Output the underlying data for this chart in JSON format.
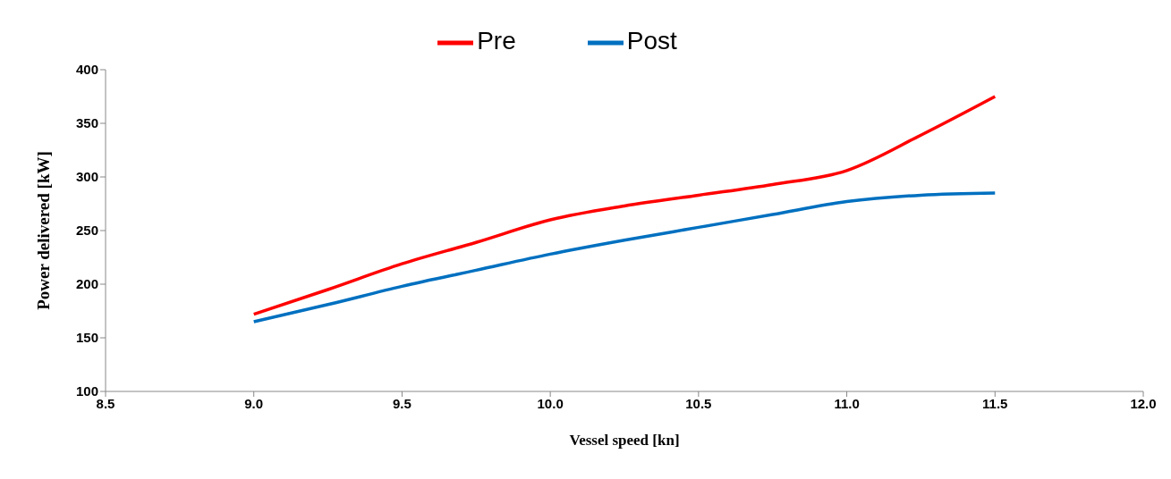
{
  "chart_data": {
    "type": "line",
    "xlabel": "Vessel speed [kn]",
    "ylabel": "Power delivered [kW]",
    "x": [
      9.0,
      9.25,
      9.5,
      9.75,
      10.0,
      10.25,
      10.5,
      10.75,
      11.0,
      11.25,
      11.5
    ],
    "series": [
      {
        "name": "Pre",
        "color": "#ff0000",
        "values": [
          172,
          195,
          219,
          239,
          260,
          273,
          283,
          293,
          306,
          339,
          375
        ]
      },
      {
        "name": "Post",
        "color": "#0070c0",
        "values": [
          165,
          181,
          198,
          213,
          228,
          241,
          253,
          265,
          277,
          283,
          285
        ]
      }
    ],
    "xlim": [
      8.5,
      12.0
    ],
    "xticks": [
      {
        "value": 8.5,
        "label": "8.5"
      },
      {
        "value": 9,
        "label": "9.0"
      },
      {
        "value": 9.5,
        "label": "9.5"
      },
      {
        "value": 10,
        "label": "10.0"
      },
      {
        "value": 10.5,
        "label": "10.5"
      },
      {
        "value": 11,
        "label": "11.0"
      },
      {
        "value": 11.5,
        "label": "11.5"
      },
      {
        "value": 12,
        "label": "12.0"
      }
    ],
    "ylim": [
      100,
      400
    ],
    "yticks": [
      100,
      150,
      200,
      250,
      300,
      350,
      400
    ],
    "grid": false,
    "legend": "top",
    "marker": "none",
    "line_style": "solid"
  }
}
